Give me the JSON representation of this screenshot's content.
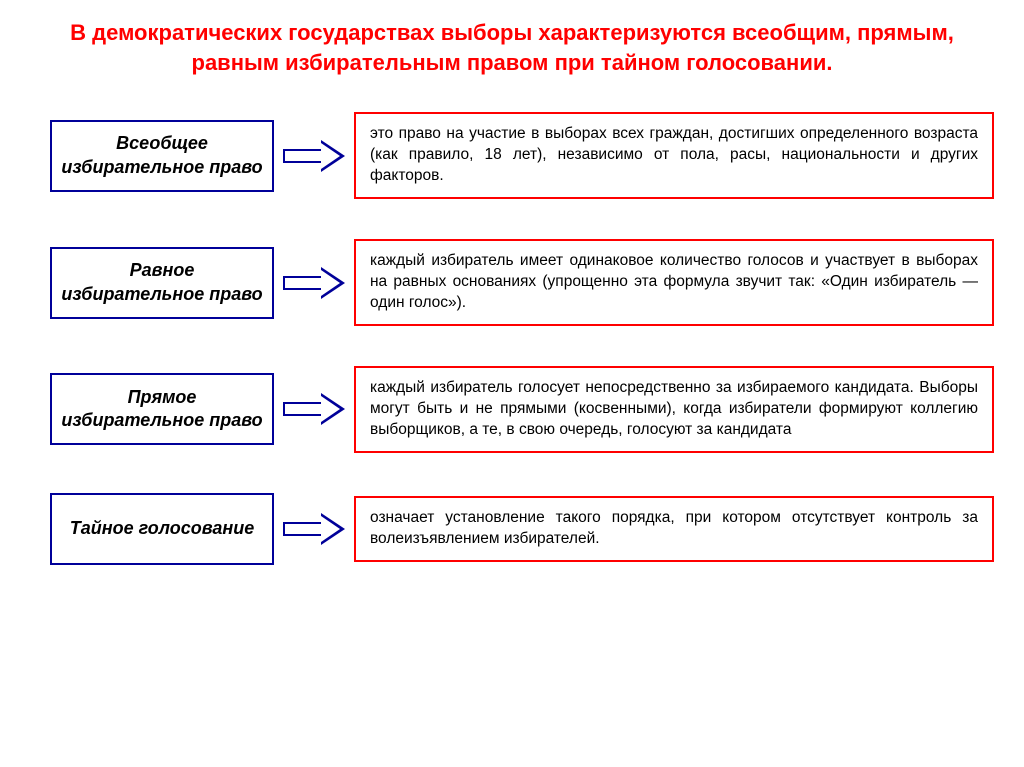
{
  "title": {
    "text": "В демократических государствах выборы характеризуются всеобщим, прямым, равным избирательным правом при тайном голосовании.",
    "color": "#ff0000"
  },
  "colors": {
    "label_border": "#000099",
    "label_text": "#000000",
    "desc_border": "#ff0000",
    "desc_text": "#000000",
    "arrow_border": "#000099",
    "arrow_fill": "#ffffff"
  },
  "rows": [
    {
      "label": "Всеобщее избирательное право",
      "desc": "это право на участие в выборах всех граждан, достигших определенного возраста (как правило, 18 лет), независимо от пола, расы, национальности и других факторов."
    },
    {
      "label": "Равное избирательное право",
      "desc": "каждый избиратель имеет одинаковое количество голосов и участвует в выборах на равных основаниях (упрощенно эта формула звучит так: «Один избиратель — один голос»)."
    },
    {
      "label": "Прямое избирательное право",
      "desc": "каждый избиратель голосует непосредственно за избираемого кандидата. Выборы могут быть и не прямыми (косвенными), когда избиратели формируют коллегию выборщиков, а те, в свою очередь, голосуют за кандидата"
    },
    {
      "label": "Тайное голосование",
      "desc": "означает установление такого порядка, при котором отсутствует контроль за волеизъявлением избирателей."
    }
  ]
}
